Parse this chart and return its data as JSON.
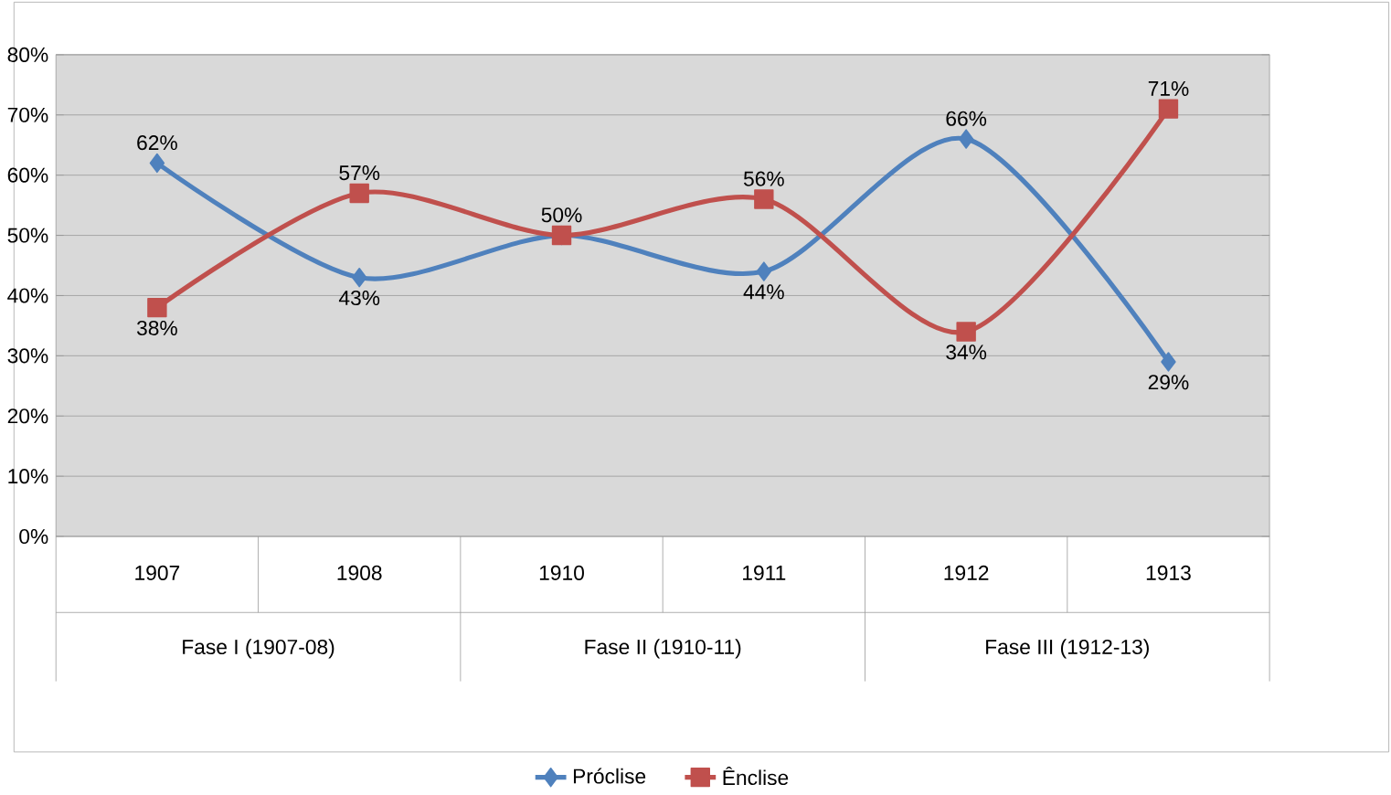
{
  "chart_data": {
    "type": "line",
    "categories": [
      "1907",
      "1908",
      "1910",
      "1911",
      "1912",
      "1913"
    ],
    "annotations": [
      "Fase I (1907-08)",
      "Fase II (1910-11)",
      "Fase III (1912-13)"
    ],
    "series": [
      {
        "name": "Próclise",
        "color": "#4f81bd",
        "marker": "diamond",
        "values": [
          62,
          43,
          50,
          44,
          66,
          29
        ],
        "value_labels": [
          "62%",
          "43%",
          null,
          "44%",
          "66%",
          "29%"
        ]
      },
      {
        "name": "Ênclise",
        "color": "#c0504d",
        "marker": "square",
        "values": [
          38,
          57,
          50,
          56,
          34,
          71
        ],
        "value_labels": [
          "38%",
          "57%",
          "50%",
          "56%",
          "34%",
          "71%"
        ]
      }
    ],
    "ylim": [
      0,
      80
    ],
    "yticks": [
      {
        "value": 0,
        "label": "0%"
      },
      {
        "value": 10,
        "label": "10%"
      },
      {
        "value": 20,
        "label": "20%"
      },
      {
        "value": 30,
        "label": "30%"
      },
      {
        "value": 40,
        "label": "40%"
      },
      {
        "value": 50,
        "label": "50%"
      },
      {
        "value": 60,
        "label": "60%"
      },
      {
        "value": 70,
        "label": "70%"
      },
      {
        "value": 80,
        "label": "80%"
      }
    ],
    "grid": "y",
    "legend": "bottom",
    "line_style": "solid"
  }
}
